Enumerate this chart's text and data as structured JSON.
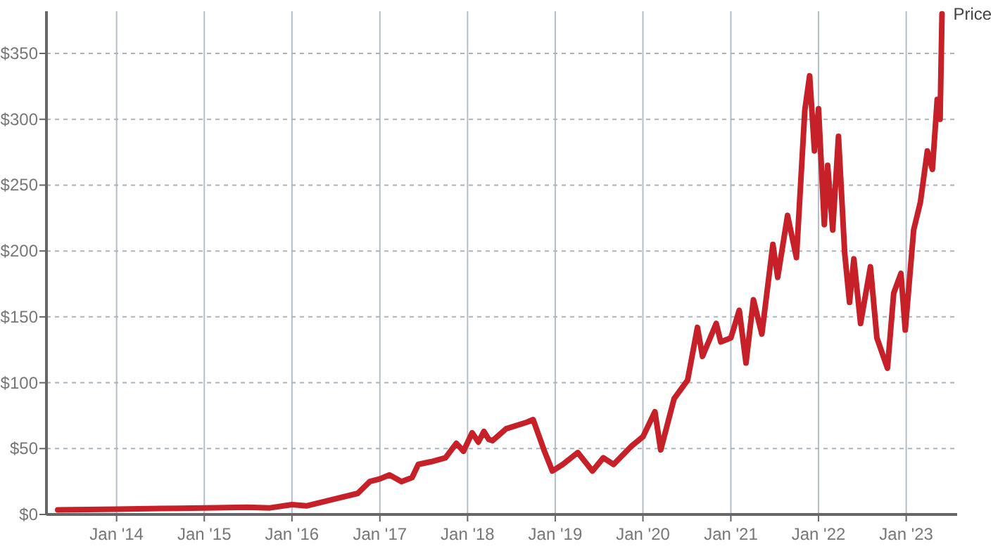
{
  "chart_data": {
    "type": "line",
    "xlim": [
      "2013-03-15",
      "2023-08-01"
    ],
    "ylim": [
      0,
      382
    ],
    "xticks": [
      {
        "value": "2014-01-01",
        "label": "Jan '14"
      },
      {
        "value": "2015-01-01",
        "label": "Jan '15"
      },
      {
        "value": "2016-01-01",
        "label": "Jan '16"
      },
      {
        "value": "2017-01-01",
        "label": "Jan '17"
      },
      {
        "value": "2018-01-01",
        "label": "Jan '18"
      },
      {
        "value": "2019-01-01",
        "label": "Jan '19"
      },
      {
        "value": "2020-01-01",
        "label": "Jan '20"
      },
      {
        "value": "2021-01-01",
        "label": "Jan '21"
      },
      {
        "value": "2022-01-01",
        "label": "Jan '22"
      },
      {
        "value": "2023-01-01",
        "label": "Jan '23"
      }
    ],
    "yticks": [
      {
        "value": 0,
        "label": "$0"
      },
      {
        "value": 50,
        "label": "$50"
      },
      {
        "value": 100,
        "label": "$100"
      },
      {
        "value": 150,
        "label": "$150"
      },
      {
        "value": 200,
        "label": "$200"
      },
      {
        "value": 250,
        "label": "$250"
      },
      {
        "value": 300,
        "label": "$300"
      },
      {
        "value": 350,
        "label": "$350"
      }
    ],
    "grid": true,
    "line_style": "solid",
    "series": [
      {
        "name": "Price",
        "color": "#c62128",
        "x": [
          "2013-05-01",
          "2014-01-01",
          "2014-07-01",
          "2015-01-01",
          "2015-07-01",
          "2015-10-01",
          "2016-01-01",
          "2016-03-01",
          "2016-07-01",
          "2016-10-01",
          "2016-11-20",
          "2017-01-01",
          "2017-02-10",
          "2017-04-01",
          "2017-05-15",
          "2017-06-10",
          "2017-08-01",
          "2017-10-01",
          "2017-11-15",
          "2017-12-15",
          "2018-01-20",
          "2018-02-15",
          "2018-03-10",
          "2018-03-30",
          "2018-04-15",
          "2018-06-10",
          "2018-09-05",
          "2018-10-01",
          "2018-11-15",
          "2018-12-20",
          "2019-02-01",
          "2019-04-05",
          "2019-06-05",
          "2019-07-20",
          "2019-09-01",
          "2019-11-15",
          "2020-01-01",
          "2020-02-20",
          "2020-03-15",
          "2020-05-10",
          "2020-07-05",
          "2020-08-15",
          "2020-09-05",
          "2020-11-01",
          "2020-11-20",
          "2021-01-01",
          "2021-02-05",
          "2021-03-05",
          "2021-04-05",
          "2021-05-10",
          "2021-06-25",
          "2021-07-15",
          "2021-08-25",
          "2021-10-01",
          "2021-11-05",
          "2021-11-25",
          "2021-12-15",
          "2022-01-01",
          "2022-01-25",
          "2022-02-08",
          "2022-03-01",
          "2022-03-25",
          "2022-04-20",
          "2022-05-10",
          "2022-05-28",
          "2022-06-25",
          "2022-08-05",
          "2022-09-01",
          "2022-10-15",
          "2022-11-10",
          "2022-12-10",
          "2022-12-28",
          "2023-02-01",
          "2023-03-01",
          "2023-03-30",
          "2023-04-20",
          "2023-05-10",
          "2023-05-22",
          "2023-05-30"
        ],
        "values": [
          3.5,
          4,
          4.5,
          5,
          5.5,
          5,
          7.5,
          6.5,
          12,
          16,
          25,
          27,
          30,
          25,
          28,
          38,
          40,
          43,
          54,
          48,
          62,
          55,
          63,
          57,
          56,
          65,
          70,
          72,
          49,
          33,
          38,
          47,
          33,
          43,
          38,
          52,
          59,
          78,
          49,
          88,
          102,
          142,
          120,
          145,
          131,
          134,
          155,
          115,
          163,
          137,
          205,
          180,
          227,
          195,
          307,
          333,
          276,
          308,
          220,
          265,
          216,
          287,
          198,
          161,
          194,
          145,
          188,
          134,
          111,
          168,
          183,
          140,
          216,
          237,
          276,
          262,
          315,
          300,
          380
        ]
      }
    ]
  }
}
